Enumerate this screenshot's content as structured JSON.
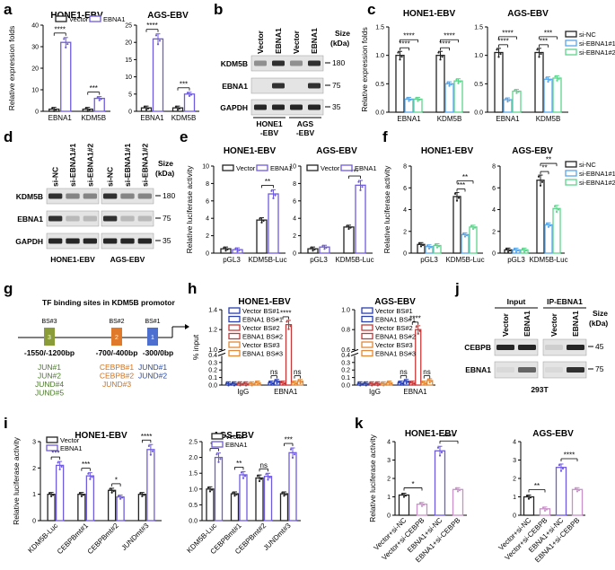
{
  "panel_labels": [
    "a",
    "b",
    "c",
    "d",
    "e",
    "f",
    "g",
    "h",
    "i",
    "j",
    "k"
  ],
  "colors": {
    "vector": "#222222",
    "ebna1": "#6f5be0",
    "sinc": "#222222",
    "si1": "#58a6ea",
    "si2": "#5dd48c",
    "vbs1": "#2a3fb0",
    "ebs1": "#2a3fb0",
    "vbs2": "#c43a3a",
    "ebs2": "#c43a3a",
    "vbs3": "#e08a3a",
    "ebs3": "#e08a3a",
    "cebpb_bar": "#c990c9"
  },
  "panel_b": {
    "lanes": [
      "Vector",
      "EBNA1",
      "Vector",
      "EBNA1"
    ],
    "size_header": "Size\n(kDa)",
    "size_title": "Size",
    "size_unit": "(kDa)",
    "rows": [
      {
        "name": "KDM5B",
        "size": "180"
      },
      {
        "name": "EBNA1",
        "size": "75"
      },
      {
        "name": "GAPDH",
        "size": "35"
      }
    ],
    "groups": [
      "HONE1\n-EBV",
      "AGS\n-EBV"
    ],
    "group_lines": [
      [
        "HONE1",
        "-EBV"
      ],
      [
        "AGS",
        "-EBV"
      ]
    ]
  },
  "panel_d": {
    "lanes": [
      "si-NC",
      "si-EBNA1#1",
      "si-EBNA1#2",
      "si-NC",
      "si-EBNA1#1",
      "si-EBNA1#2"
    ],
    "size_title": "Size",
    "size_unit": "(kDa)",
    "rows": [
      {
        "name": "KDM5B",
        "size": "180"
      },
      {
        "name": "EBNA1",
        "size": "75"
      },
      {
        "name": "GAPDH",
        "size": "35"
      }
    ],
    "groups": [
      "HONE1-EBV",
      "AGS-EBV"
    ]
  },
  "panel_g": {
    "title": "TF binding sites in KDM5B promotor",
    "sites": [
      {
        "label": "BS#3",
        "num": "3",
        "range": "-1550/-1200bp",
        "tfs": [
          "JUN#1",
          "JUN#2",
          "JUND#4",
          "JUND#5"
        ]
      },
      {
        "label": "BS#2",
        "num": "2",
        "range": "-700/-400bp",
        "tfs": [
          "CEBPB#1",
          "CEBPB#2",
          "JUND#3"
        ]
      },
      {
        "label": "BS#1",
        "num": "1",
        "range": "-300/0bp",
        "tfs": [
          "JUND#1",
          "JUND#2"
        ]
      }
    ]
  },
  "panel_j": {
    "input_label": "Input",
    "ip_label": "IP-EBNA1",
    "lanes": [
      "Vector",
      "EBNA1",
      "Vector",
      "EBNA1"
    ],
    "size_title": "Size",
    "size_unit": "(kDa)",
    "rows": [
      {
        "name": "CEBPB",
        "size": "45"
      },
      {
        "name": "EBNA1",
        "size": "75"
      }
    ],
    "cell": "293T"
  },
  "chart_data": [
    {
      "id": "a1",
      "type": "bar",
      "title": "HONE1-EBV",
      "ylabel": "Relative expression folds",
      "ylim": [
        0,
        40
      ],
      "yticks": [
        0,
        10,
        20,
        30,
        40
      ],
      "categories": [
        "EBNA1",
        "KDM5B"
      ],
      "legend": [
        "Vector",
        "EBNA1"
      ],
      "series": [
        {
          "name": "Vector",
          "values": [
            1,
            1
          ]
        },
        {
          "name": "EBNA1",
          "values": [
            32,
            6
          ]
        }
      ],
      "sig": [
        "****",
        "***"
      ]
    },
    {
      "id": "a2",
      "type": "bar",
      "title": "AGS-EBV",
      "ylabel": "",
      "ylim": [
        0,
        25
      ],
      "yticks": [
        0,
        5,
        10,
        15,
        20,
        25
      ],
      "categories": [
        "EBNA1",
        "KDM5B"
      ],
      "legend": [],
      "series": [
        {
          "name": "Vector",
          "values": [
            1,
            1
          ]
        },
        {
          "name": "EBNA1",
          "values": [
            21,
            5
          ]
        }
      ],
      "sig": [
        "****",
        "***"
      ]
    },
    {
      "id": "c1",
      "type": "bar",
      "title": "HONE1-EBV",
      "ylabel": "Relative expression folds",
      "ylim": [
        0,
        1.5
      ],
      "yticks": [
        "0.0",
        "0.5",
        "1.0",
        "1.5"
      ],
      "categories": [
        "EBNA1",
        "KDM5B"
      ],
      "legend": [],
      "series": [
        {
          "name": "si-NC",
          "values": [
            1.0,
            1.0
          ]
        },
        {
          "name": "si-EBNA1#1",
          "values": [
            0.23,
            0.5
          ]
        },
        {
          "name": "si-EBNA1#2",
          "values": [
            0.23,
            0.55
          ]
        }
      ],
      "sig": [
        "****",
        "****",
        "****",
        "****"
      ]
    },
    {
      "id": "c2",
      "type": "bar",
      "title": "AGS-EBV",
      "ylabel": "",
      "ylim": [
        0,
        1.5
      ],
      "yticks": [
        "0.0",
        "0.5",
        "1.0",
        "1.5"
      ],
      "categories": [
        "EBNA1",
        "KDM5B"
      ],
      "legend": [
        "si-NC",
        "si-EBNA1#1",
        "si-EBNA1#2"
      ],
      "series": [
        {
          "name": "si-NC",
          "values": [
            1.05,
            1.05
          ]
        },
        {
          "name": "si-EBNA1#1",
          "values": [
            0.22,
            0.58
          ]
        },
        {
          "name": "si-EBNA1#2",
          "values": [
            0.37,
            0.6
          ]
        }
      ],
      "sig": [
        "****",
        "***",
        "****",
        "***"
      ]
    },
    {
      "id": "e1",
      "type": "bar",
      "title": "HONE1-EBV",
      "ylabel": "Relative luciferase activity",
      "ylim": [
        0,
        10
      ],
      "yticks": [
        0,
        2,
        4,
        6,
        8,
        10
      ],
      "categories": [
        "pGL3",
        "KDM5B-Luc"
      ],
      "legend": [
        "Vector",
        "EBNA1"
      ],
      "series": [
        {
          "name": "Vector",
          "values": [
            0.5,
            3.8
          ]
        },
        {
          "name": "EBNA1",
          "values": [
            0.4,
            6.8
          ]
        }
      ],
      "sig": [
        "**"
      ]
    },
    {
      "id": "e2",
      "type": "bar",
      "title": "AGS-EBV",
      "ylabel": "",
      "ylim": [
        0,
        10
      ],
      "yticks": [
        0,
        2,
        4,
        6,
        8,
        10
      ],
      "categories": [
        "pGL3",
        "KDM5B-Luc"
      ],
      "legend": [
        "Vector",
        "EBNA1"
      ],
      "series": [
        {
          "name": "Vector",
          "values": [
            0.5,
            3.0
          ]
        },
        {
          "name": "EBNA1",
          "values": [
            0.7,
            7.8
          ]
        }
      ],
      "sig": [
        "***"
      ]
    },
    {
      "id": "f1",
      "type": "bar",
      "title": "HONE1-EBV",
      "ylabel": "Relative luciferase activity",
      "ylim": [
        0,
        8
      ],
      "yticks": [
        0,
        2,
        4,
        6,
        8
      ],
      "categories": [
        "pGL3",
        "KDM5B-Luc"
      ],
      "legend": [],
      "series": [
        {
          "name": "si-NC",
          "values": [
            0.8,
            5.2
          ]
        },
        {
          "name": "si-EBNA1#1",
          "values": [
            0.6,
            1.7
          ]
        },
        {
          "name": "si-EBNA1#2",
          "values": [
            0.7,
            2.4
          ]
        }
      ],
      "sig": [
        "***",
        "**"
      ]
    },
    {
      "id": "f2",
      "type": "bar",
      "title": "AGS-EBV",
      "ylabel": "",
      "ylim": [
        0,
        8
      ],
      "yticks": [
        0,
        2,
        4,
        6,
        8
      ],
      "categories": [
        "pGL3",
        "KDM5B-Luc"
      ],
      "legend": [
        "si-NC",
        "si-EBNA1#1",
        "si-EBNA1#2"
      ],
      "series": [
        {
          "name": "si-NC",
          "values": [
            0.3,
            6.7
          ]
        },
        {
          "name": "si-EBNA1#1",
          "values": [
            0.3,
            2.6
          ]
        },
        {
          "name": "si-EBNA1#2",
          "values": [
            0.3,
            4.1
          ]
        }
      ],
      "sig": [
        "**",
        "**"
      ]
    },
    {
      "id": "h1",
      "type": "bar",
      "title": "HONE1-EBV",
      "ylabel": "% input",
      "ylim": [
        0,
        1.4
      ],
      "yticks": [
        "0.0",
        "0.1",
        "0.2",
        "0.3",
        "0.4",
        "1.0",
        "1.2",
        "1.4"
      ],
      "categories": [
        "IgG",
        "EBNA1"
      ],
      "legend": [
        "Vector BS#1",
        "EBNA1 BS#1",
        "Vector BS#2",
        "EBNA1 BS#2",
        "Vector BS#3",
        "EBNA1 BS#3"
      ],
      "series": [
        {
          "name": "Vector BS#1",
          "values": [
            0.02,
            0.03
          ]
        },
        {
          "name": "EBNA1 BS#1",
          "values": [
            0.02,
            0.05
          ]
        },
        {
          "name": "Vector BS#2",
          "values": [
            0.02,
            0.03
          ]
        },
        {
          "name": "EBNA1 BS#2",
          "values": [
            0.02,
            1.25
          ]
        },
        {
          "name": "Vector BS#3",
          "values": [
            0.02,
            0.03
          ]
        },
        {
          "name": "EBNA1 BS#3",
          "values": [
            0.03,
            0.05
          ]
        }
      ],
      "sig": [
        "ns",
        "****",
        "ns"
      ]
    },
    {
      "id": "h2",
      "type": "bar",
      "title": "AGS-EBV",
      "ylabel": "",
      "ylim": [
        0,
        1.0
      ],
      "yticks": [
        "0.0",
        "0.1",
        "0.2",
        "0.3",
        "0.4",
        "0.6",
        "0.8",
        "1.0"
      ],
      "categories": [
        "IgG",
        "EBNA1"
      ],
      "legend": [
        "Vector BS#1",
        "EBNA1 BS#1",
        "Vector BS#2",
        "EBNA1 BS#2",
        "Vector BS#3",
        "EBNA1 BS#3"
      ],
      "series": [
        {
          "name": "Vector BS#1",
          "values": [
            0.02,
            0.03
          ]
        },
        {
          "name": "EBNA1 BS#1",
          "values": [
            0.02,
            0.05
          ]
        },
        {
          "name": "Vector BS#2",
          "values": [
            0.02,
            0.03
          ]
        },
        {
          "name": "EBNA1 BS#2",
          "values": [
            0.02,
            0.8
          ]
        },
        {
          "name": "Vector BS#3",
          "values": [
            0.02,
            0.03
          ]
        },
        {
          "name": "EBNA1 BS#3",
          "values": [
            0.03,
            0.06
          ]
        }
      ],
      "sig": [
        "ns",
        "****",
        "ns"
      ]
    },
    {
      "id": "i1",
      "type": "bar",
      "title": "HONE1-EBV",
      "ylabel": "Relative luciferase activity",
      "ylim": [
        0,
        3
      ],
      "yticks": [
        0,
        1,
        2,
        3
      ],
      "categories": [
        "KDM5B-Luc",
        "CEBPBmt#1",
        "CEBPBmt#2",
        "JUNDmt#3"
      ],
      "legend": [
        "Vector",
        "EBNA1"
      ],
      "series": [
        {
          "name": "Vector",
          "values": [
            1.0,
            1.0,
            1.15,
            1.0
          ]
        },
        {
          "name": "EBNA1",
          "values": [
            2.1,
            1.7,
            0.9,
            2.7
          ]
        }
      ],
      "sig": [
        "***",
        "***",
        "*",
        "****"
      ]
    },
    {
      "id": "i2",
      "type": "bar",
      "title": "AGS-EBV",
      "ylabel": "",
      "ylim": [
        0,
        2.5
      ],
      "yticks": [
        "0.0",
        "0.5",
        "1.0",
        "1.5",
        "2.0",
        "2.5"
      ],
      "categories": [
        "KDM5B-Luc",
        "CEBPBmt#1",
        "CEBPBmt#2",
        "JUNDmt#3"
      ],
      "legend": [
        "Vector",
        "EBNA1"
      ],
      "series": [
        {
          "name": "Vector",
          "values": [
            1.0,
            0.85,
            1.35,
            0.85
          ]
        },
        {
          "name": "EBNA1",
          "values": [
            2.0,
            1.45,
            1.4,
            2.15
          ]
        }
      ],
      "sig": [
        "***",
        "**",
        "ns",
        "***"
      ]
    },
    {
      "id": "k1",
      "type": "bar",
      "title": "HONE1-EBV",
      "ylabel": "Relative luciferase activity",
      "ylim": [
        0,
        4
      ],
      "yticks": [
        0,
        1,
        2,
        3,
        4
      ],
      "categories": [
        "Vector+si-NC",
        "Vector+si-CEBPB",
        "EBNA1+si-NC",
        "EBNA1+si-CEBPB"
      ],
      "legend": [],
      "series": [
        {
          "name": "value",
          "values": [
            1.1,
            0.6,
            3.5,
            1.4
          ]
        }
      ],
      "sig": [
        "*",
        "****"
      ]
    },
    {
      "id": "k2",
      "type": "bar",
      "title": "AGS-EBV",
      "ylabel": "",
      "ylim": [
        0,
        4
      ],
      "yticks": [
        0,
        1,
        2,
        3,
        4
      ],
      "categories": [
        "Vector+si-NC",
        "Vector+si-CEBPB",
        "EBNA1+si-NC",
        "EBNA1+si-CEBPB"
      ],
      "legend": [],
      "series": [
        {
          "name": "value",
          "values": [
            1.0,
            0.35,
            2.6,
            1.4
          ]
        }
      ],
      "sig": [
        "**",
        "****"
      ]
    }
  ]
}
